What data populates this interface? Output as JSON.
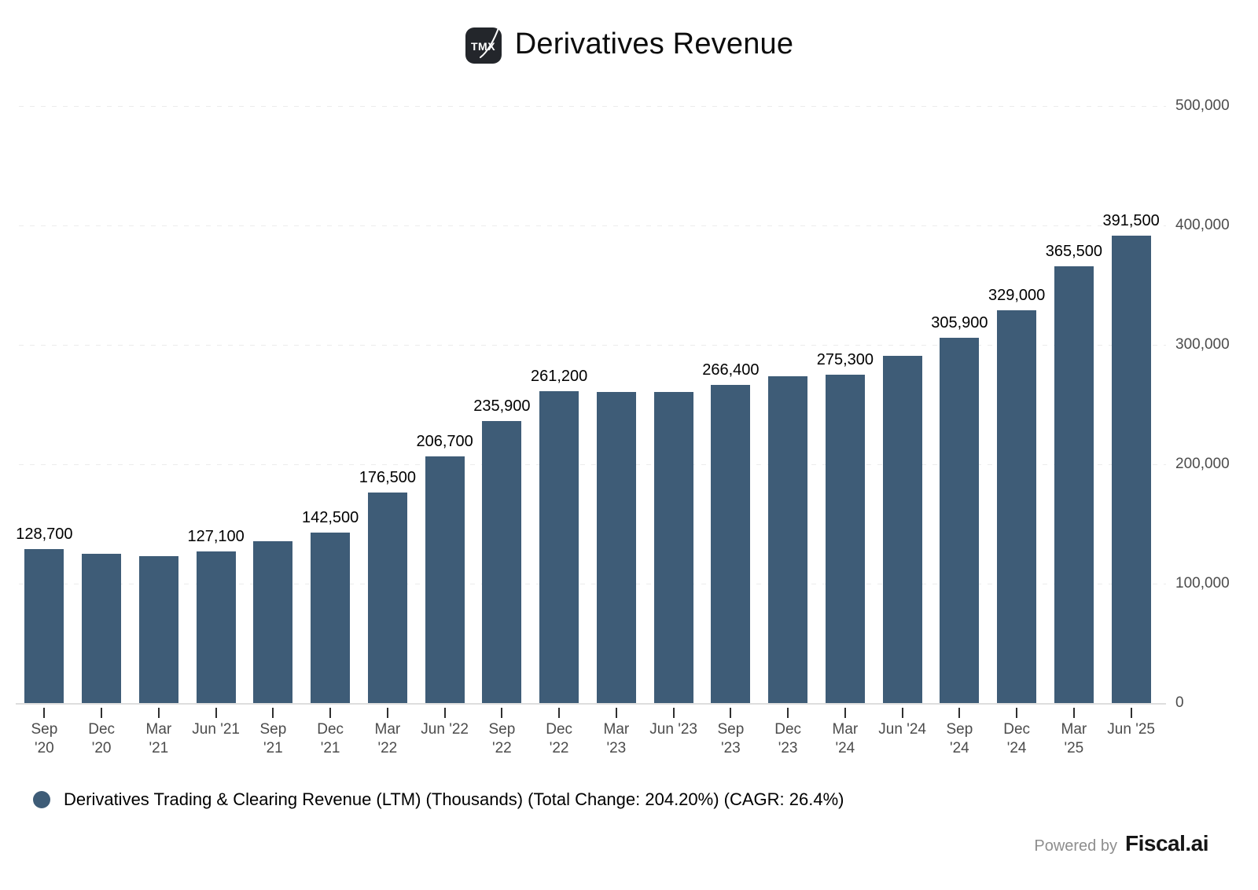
{
  "header": {
    "logo_text": "TMX",
    "title": "Derivatives Revenue"
  },
  "chart_data": {
    "type": "bar",
    "title": "Derivatives Revenue",
    "xlabel": "",
    "ylabel": "",
    "ylim": [
      0,
      500000
    ],
    "y_tick_labels": [
      "500,000",
      "400,000",
      "300,000",
      "200,000",
      "100,000",
      "0"
    ],
    "grid": "horizontal-dashed",
    "legend_position": "bottom-left",
    "bar_color": "#3E5C77",
    "series": [
      {
        "name": "Derivatives Trading & Clearing Revenue (LTM) (Thousands) (Total Change: 204.20%) (CAGR: 26.4%)",
        "unit": "Thousands",
        "total_change": "204.20%",
        "cagr": "26.4%"
      }
    ],
    "categories": [
      "Sep '20",
      "Dec '20",
      "Mar '21",
      "Jun '21",
      "Sep '21",
      "Dec '21",
      "Mar '22",
      "Jun '22",
      "Sep '22",
      "Dec '22",
      "Mar '23",
      "Jun '23",
      "Sep '23",
      "Dec '23",
      "Mar '24",
      "Jun '24",
      "Sep '24",
      "Dec '24",
      "Mar '25",
      "Jun '25"
    ],
    "values": [
      128700,
      124900,
      122800,
      127100,
      135400,
      142500,
      176500,
      206700,
      235900,
      261200,
      260700,
      260400,
      266400,
      273700,
      275300,
      290600,
      305900,
      329000,
      365500,
      391500
    ],
    "value_labels": [
      "128,700",
      "",
      "",
      "127,100",
      "",
      "142,500",
      "176,500",
      "206,700",
      "235,900",
      "261,200",
      "",
      "",
      "266,400",
      "",
      "275,300",
      "",
      "305,900",
      "329,000",
      "365,500",
      "391,500"
    ],
    "x_tick_line1": [
      "Sep",
      "Dec",
      "Mar",
      "Jun '21",
      "Sep",
      "Dec",
      "Mar",
      "Jun '22",
      "Sep",
      "Dec",
      "Mar",
      "Jun '23",
      "Sep",
      "Dec",
      "Mar",
      "Jun '24",
      "Sep",
      "Dec",
      "Mar",
      "Jun '25"
    ],
    "x_tick_line2": [
      "'20",
      "'20",
      "'21",
      "",
      "'21",
      "'21",
      "'22",
      "",
      "'22",
      "'22",
      "'23",
      "",
      "'23",
      "'23",
      "'24",
      "",
      "'24",
      "'24",
      "'25",
      ""
    ]
  },
  "legend": {
    "marker_color": "#3E5C77",
    "label": "Derivatives Trading & Clearing Revenue (LTM) (Thousands) (Total Change: 204.20%) (CAGR: 26.4%)"
  },
  "footer": {
    "powered_by": "Powered by",
    "brand": "Fiscal.ai"
  }
}
